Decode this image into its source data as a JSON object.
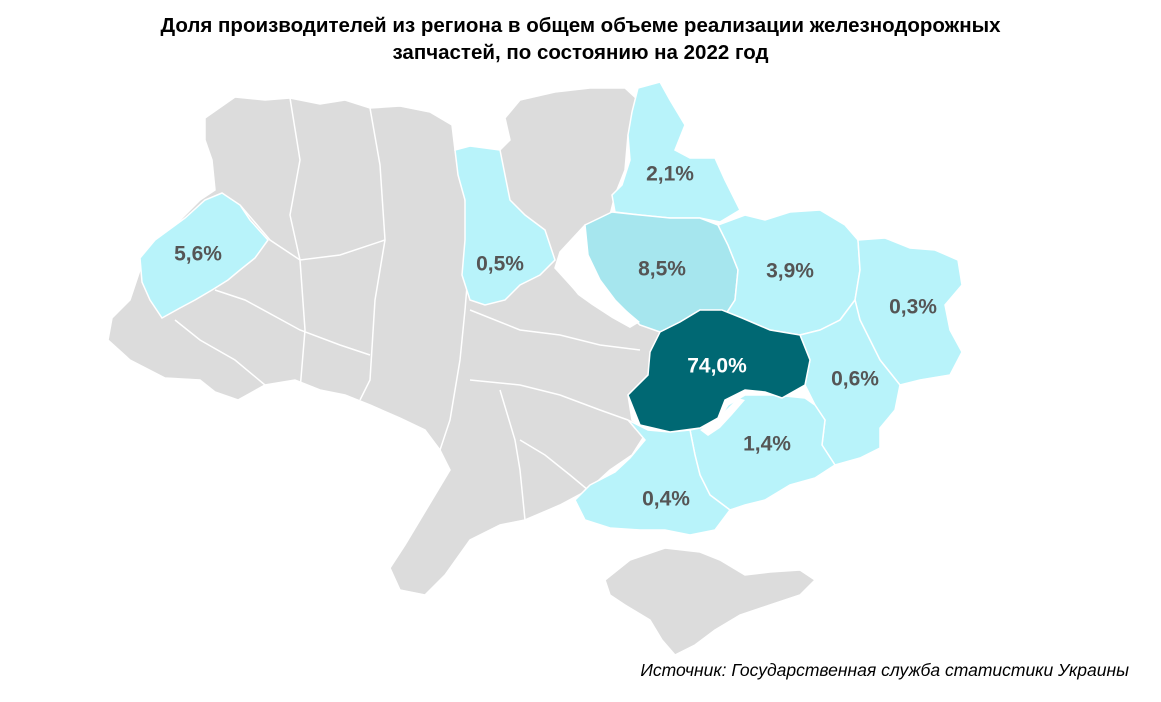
{
  "title": {
    "line1": "Доля производителей из региона в общем объеме реализации железнодорожных",
    "line2": "запчастей, по состоянию на 2022 год"
  },
  "source": "Источник:  Государственная служба статистики Украины",
  "colors": {
    "base": "#dcdcdc",
    "border": "#ffffff",
    "light": "#b8f3fa",
    "mid": "#a6e6ee",
    "dark": "#006873",
    "label": "#555555",
    "label_dark": "#ffffff"
  },
  "regions": [
    {
      "id": "lviv",
      "value": "5,6%",
      "share": 5.6
    },
    {
      "id": "rivne",
      "value": "0,5%",
      "share": 0.5
    },
    {
      "id": "chernihiv",
      "value": "2,1%",
      "share": 2.1
    },
    {
      "id": "poltava",
      "value": "8,5%",
      "share": 8.5
    },
    {
      "id": "kharkiv",
      "value": "3,9%",
      "share": 3.9
    },
    {
      "id": "luhansk",
      "value": "0,3%",
      "share": 0.3
    },
    {
      "id": "dnipro",
      "value": "74,0%",
      "share": 74.0
    },
    {
      "id": "donetsk",
      "value": "0,6%",
      "share": 0.6
    },
    {
      "id": "zaporizhzhia",
      "value": "1,4%",
      "share": 1.4
    },
    {
      "id": "kherson",
      "value": "0,4%",
      "share": 0.4
    }
  ]
}
